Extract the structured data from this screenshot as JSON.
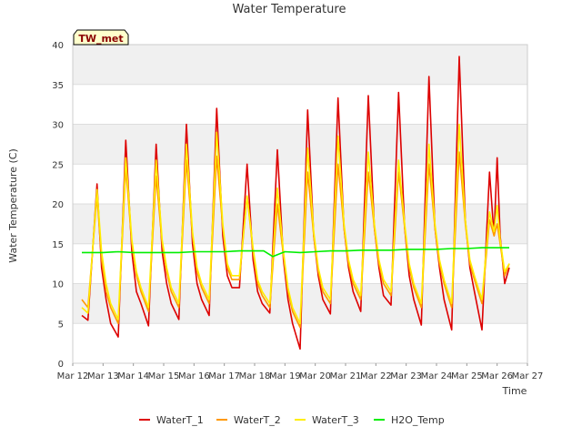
{
  "chart_data": {
    "type": "line",
    "title": "Water Temperature",
    "xlabel": "Time",
    "ylabel": "Water Temperature (C)",
    "site_label": "TW_met",
    "xlim": [
      12,
      27
    ],
    "ylim": [
      0,
      40
    ],
    "x_ticks": [
      {
        "value": 12,
        "label": "Mar 12"
      },
      {
        "value": 13,
        "label": "Mar 13"
      },
      {
        "value": 14,
        "label": "Mar 14"
      },
      {
        "value": 15,
        "label": "Mar 15"
      },
      {
        "value": 16,
        "label": "Mar 16"
      },
      {
        "value": 17,
        "label": "Mar 17"
      },
      {
        "value": 18,
        "label": "Mar 18"
      },
      {
        "value": 19,
        "label": "Mar 19"
      },
      {
        "value": 20,
        "label": "Mar 20"
      },
      {
        "value": 21,
        "label": "Mar 21"
      },
      {
        "value": 22,
        "label": "Mar 22"
      },
      {
        "value": 23,
        "label": "Mar 23"
      },
      {
        "value": 24,
        "label": "Mar 24"
      },
      {
        "value": 25,
        "label": "Mar 25"
      },
      {
        "value": 26,
        "label": "Mar 26"
      },
      {
        "value": 27,
        "label": "Mar 27"
      }
    ],
    "y_ticks": [
      {
        "value": 0,
        "label": "0"
      },
      {
        "value": 5,
        "label": "5"
      },
      {
        "value": 10,
        "label": "10"
      },
      {
        "value": 15,
        "label": "15"
      },
      {
        "value": 20,
        "label": "20"
      },
      {
        "value": 25,
        "label": "25"
      },
      {
        "value": 30,
        "label": "30"
      },
      {
        "value": 35,
        "label": "35"
      },
      {
        "value": 40,
        "label": "40"
      }
    ],
    "series": [
      {
        "name": "WaterT_1",
        "color": "#dd0000",
        "x": [
          12.3,
          12.5,
          12.8,
          12.95,
          13.1,
          13.25,
          13.5,
          13.75,
          13.95,
          14.1,
          14.25,
          14.5,
          14.75,
          14.95,
          15.1,
          15.25,
          15.5,
          15.75,
          15.95,
          16.1,
          16.25,
          16.5,
          16.75,
          16.95,
          17.1,
          17.25,
          17.5,
          17.75,
          17.95,
          18.1,
          18.25,
          18.5,
          18.75,
          18.95,
          19.1,
          19.25,
          19.5,
          19.75,
          19.95,
          20.1,
          20.25,
          20.5,
          20.75,
          20.95,
          21.1,
          21.25,
          21.5,
          21.75,
          21.95,
          22.1,
          22.25,
          22.5,
          22.75,
          22.95,
          23.1,
          23.25,
          23.5,
          23.75,
          23.95,
          24.1,
          24.25,
          24.5,
          24.75,
          24.95,
          25.1,
          25.25,
          25.5,
          25.75,
          25.9,
          26.0,
          26.1,
          26.25,
          26.4
        ],
        "values": [
          6.0,
          5.4,
          22.5,
          12.0,
          8.0,
          5.0,
          3.3,
          28.0,
          14.0,
          9.0,
          7.5,
          4.7,
          27.5,
          14.0,
          10.0,
          7.5,
          5.5,
          30.0,
          15.0,
          10.0,
          8.0,
          6.0,
          32.0,
          16.0,
          11.0,
          9.5,
          9.5,
          25.0,
          13.0,
          9.0,
          7.5,
          6.3,
          26.8,
          13.0,
          8.0,
          5.0,
          1.8,
          31.8,
          16.0,
          11.0,
          8.0,
          6.2,
          33.3,
          17.0,
          12.0,
          9.0,
          6.5,
          33.6,
          17.0,
          12.0,
          8.5,
          7.3,
          34.0,
          17.0,
          11.0,
          8.0,
          4.8,
          36.0,
          17.0,
          12.0,
          8.0,
          4.2,
          38.5,
          18.0,
          12.0,
          9.0,
          4.2,
          24.0,
          16.0,
          25.8,
          16.0,
          10.0,
          12.0
        ]
      },
      {
        "name": "WaterT_2",
        "color": "#ff9900",
        "x": [
          12.3,
          12.5,
          12.8,
          12.95,
          13.1,
          13.25,
          13.5,
          13.75,
          13.95,
          14.1,
          14.25,
          14.5,
          14.75,
          14.95,
          15.1,
          15.25,
          15.5,
          15.75,
          15.95,
          16.1,
          16.25,
          16.5,
          16.75,
          16.95,
          17.1,
          17.25,
          17.5,
          17.75,
          17.95,
          18.1,
          18.25,
          18.5,
          18.75,
          18.95,
          19.1,
          19.25,
          19.5,
          19.75,
          19.95,
          20.1,
          20.25,
          20.5,
          20.75,
          20.95,
          21.1,
          21.25,
          21.5,
          21.75,
          21.95,
          22.1,
          22.25,
          22.5,
          22.75,
          22.95,
          23.1,
          23.25,
          23.5,
          23.75,
          23.95,
          24.1,
          24.25,
          24.5,
          24.75,
          24.95,
          25.1,
          25.25,
          25.5,
          25.75,
          25.9,
          26.0,
          26.1,
          26.25,
          26.4
        ],
        "values": [
          8.0,
          7.0,
          21.0,
          13.0,
          9.0,
          7.0,
          5.0,
          24.5,
          15.0,
          11.0,
          9.0,
          6.5,
          23.5,
          15.0,
          11.5,
          9.0,
          7.0,
          25.5,
          16.0,
          11.5,
          9.5,
          7.5,
          26.0,
          17.0,
          12.0,
          10.5,
          10.5,
          21.0,
          14.0,
          10.0,
          8.5,
          7.0,
          20.0,
          13.5,
          9.0,
          6.5,
          4.5,
          24.0,
          16.0,
          11.5,
          9.0,
          7.5,
          25.0,
          17.0,
          12.5,
          10.0,
          8.0,
          24.0,
          17.0,
          12.5,
          10.0,
          8.5,
          24.0,
          17.0,
          12.0,
          9.5,
          7.0,
          25.0,
          17.0,
          12.5,
          10.0,
          7.0,
          26.5,
          17.5,
          12.5,
          10.5,
          7.5,
          18.0,
          16.0,
          17.5,
          15.0,
          11.0,
          12.5
        ]
      },
      {
        "name": "WaterT_3",
        "color": "#ffee00",
        "x": [
          12.3,
          12.5,
          12.8,
          12.95,
          13.1,
          13.25,
          13.5,
          13.75,
          13.95,
          14.1,
          14.25,
          14.5,
          14.75,
          14.95,
          15.1,
          15.25,
          15.5,
          15.75,
          15.95,
          16.1,
          16.25,
          16.5,
          16.75,
          16.95,
          17.1,
          17.25,
          17.5,
          17.75,
          17.95,
          18.1,
          18.25,
          18.5,
          18.75,
          18.95,
          19.1,
          19.25,
          19.5,
          19.75,
          19.95,
          20.1,
          20.25,
          20.5,
          20.75,
          20.95,
          21.1,
          21.25,
          21.5,
          21.75,
          21.95,
          22.1,
          22.25,
          22.5,
          22.75,
          22.95,
          23.1,
          23.25,
          23.5,
          23.75,
          23.95,
          24.1,
          24.25,
          24.5,
          24.75,
          24.95,
          25.1,
          25.25,
          25.5,
          25.75,
          25.9,
          26.0,
          26.1,
          26.25,
          26.4
        ],
        "values": [
          7.0,
          6.3,
          21.8,
          14.0,
          10.0,
          7.5,
          5.5,
          25.8,
          15.5,
          11.5,
          9.5,
          7.0,
          25.5,
          15.5,
          12.0,
          9.5,
          7.5,
          27.5,
          16.5,
          12.0,
          10.0,
          8.0,
          29.0,
          17.5,
          12.5,
          11.0,
          11.0,
          21.0,
          14.5,
          10.5,
          9.0,
          7.5,
          22.0,
          14.0,
          9.5,
          7.0,
          5.0,
          27.0,
          16.5,
          12.0,
          9.5,
          8.0,
          28.5,
          17.5,
          13.0,
          10.5,
          8.5,
          26.5,
          17.5,
          13.0,
          10.5,
          9.0,
          25.5,
          17.5,
          12.5,
          10.0,
          7.5,
          27.5,
          17.5,
          13.0,
          10.5,
          7.5,
          30.0,
          18.0,
          13.0,
          11.0,
          8.0,
          19.0,
          16.5,
          19.8,
          15.5,
          11.5,
          12.5
        ]
      },
      {
        "name": "H2O_Temp",
        "color": "#00ee00",
        "x": [
          12.3,
          13.0,
          13.5,
          14.0,
          14.5,
          15.0,
          15.5,
          16.0,
          16.5,
          17.0,
          17.5,
          18.0,
          18.3,
          18.6,
          19.0,
          19.5,
          20.0,
          20.5,
          21.0,
          21.5,
          22.0,
          22.5,
          23.0,
          23.5,
          24.0,
          24.5,
          25.0,
          25.5,
          26.0,
          26.4
        ],
        "values": [
          13.9,
          13.9,
          14.0,
          13.9,
          13.9,
          13.9,
          13.9,
          14.0,
          14.0,
          14.0,
          14.1,
          14.1,
          14.1,
          13.4,
          14.0,
          13.9,
          14.0,
          14.1,
          14.1,
          14.2,
          14.2,
          14.2,
          14.3,
          14.3,
          14.3,
          14.4,
          14.4,
          14.5,
          14.5,
          14.5
        ]
      }
    ]
  }
}
